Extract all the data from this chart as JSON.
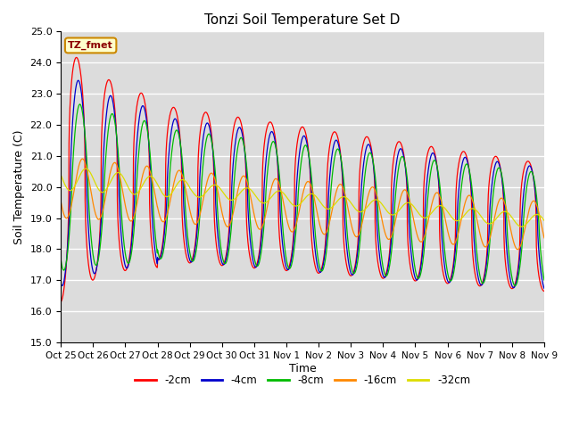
{
  "title": "Tonzi Soil Temperature Set D",
  "xlabel": "Time",
  "ylabel": "Soil Temperature (C)",
  "ylim": [
    15.0,
    25.0
  ],
  "yticks": [
    15.0,
    16.0,
    17.0,
    18.0,
    19.0,
    20.0,
    21.0,
    22.0,
    23.0,
    24.0,
    25.0
  ],
  "xtick_labels": [
    "Oct 25",
    "Oct 26",
    "Oct 27",
    "Oct 28",
    "Oct 29",
    "Oct 30",
    "Oct 31",
    "Nov 1",
    "Nov 2",
    "Nov 3",
    "Nov 4",
    "Nov 5",
    "Nov 6",
    "Nov 7",
    "Nov 8",
    "Nov 9"
  ],
  "legend_label": "TZ_fmet",
  "series_colors": [
    "#ff0000",
    "#0000cc",
    "#00bb00",
    "#ff8800",
    "#dddd00"
  ],
  "series_labels": [
    "-2cm",
    "-4cm",
    "-8cm",
    "-16cm",
    "-32cm"
  ],
  "background_color": "#dcdcdc",
  "n_days": 15,
  "ppd": 240
}
